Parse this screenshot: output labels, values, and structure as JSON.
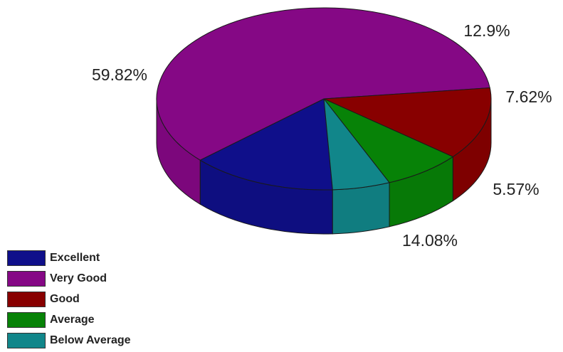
{
  "chart_data": {
    "type": "pie",
    "title": "",
    "categories": [
      "Excellent",
      "Very Good",
      "Good",
      "Average",
      "Below Average"
    ],
    "values": [
      14.08,
      59.82,
      12.9,
      7.62,
      5.57
    ],
    "value_labels": [
      "14.08%",
      "59.82%",
      "12.9%",
      "7.62%",
      "5.57%"
    ],
    "colors": [
      "#0f0f8a",
      "#850885",
      "#880000",
      "#078207",
      "#11868a"
    ],
    "legend_position": "bottom-left",
    "style": "3d"
  }
}
